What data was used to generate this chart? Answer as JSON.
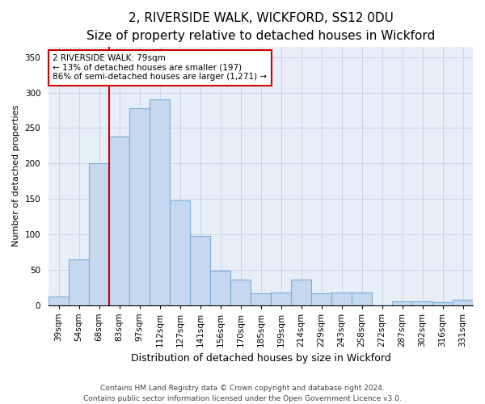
{
  "title": "2, RIVERSIDE WALK, WICKFORD, SS12 0DU",
  "subtitle": "Size of property relative to detached houses in Wickford",
  "xlabel": "Distribution of detached houses by size in Wickford",
  "ylabel": "Number of detached properties",
  "categories": [
    "39sqm",
    "54sqm",
    "68sqm",
    "83sqm",
    "97sqm",
    "112sqm",
    "127sqm",
    "141sqm",
    "156sqm",
    "170sqm",
    "185sqm",
    "199sqm",
    "214sqm",
    "229sqm",
    "243sqm",
    "258sqm",
    "272sqm",
    "287sqm",
    "302sqm",
    "316sqm",
    "331sqm"
  ],
  "values": [
    12,
    65,
    200,
    238,
    278,
    290,
    148,
    97,
    49,
    36,
    17,
    18,
    36,
    17,
    18,
    18,
    0,
    5,
    5,
    4,
    7
  ],
  "bar_color": "#c5d8ef",
  "bar_edge_color": "#7aadd4",
  "vline_color": "#cc0000",
  "vline_index": 2.5,
  "annotation_text": "2 RIVERSIDE WALK: 79sqm\n← 13% of detached houses are smaller (197)\n86% of semi-detached houses are larger (1,271) →",
  "annotation_box_facecolor": "#ffffff",
  "annotation_box_edgecolor": "#cc0000",
  "ylim": [
    0,
    365
  ],
  "yticks": [
    0,
    50,
    100,
    150,
    200,
    250,
    300,
    350
  ],
  "grid_color": "#c8d4e4",
  "bg_color": "#e8eef8",
  "footer_line1": "Contains HM Land Registry data © Crown copyright and database right 2024.",
  "footer_line2": "Contains public sector information licensed under the Open Government Licence v3.0.",
  "title_fontsize": 11,
  "xlabel_fontsize": 9,
  "ylabel_fontsize": 8,
  "tick_fontsize": 7.5,
  "annot_fontsize": 7.5,
  "footer_fontsize": 6.5
}
